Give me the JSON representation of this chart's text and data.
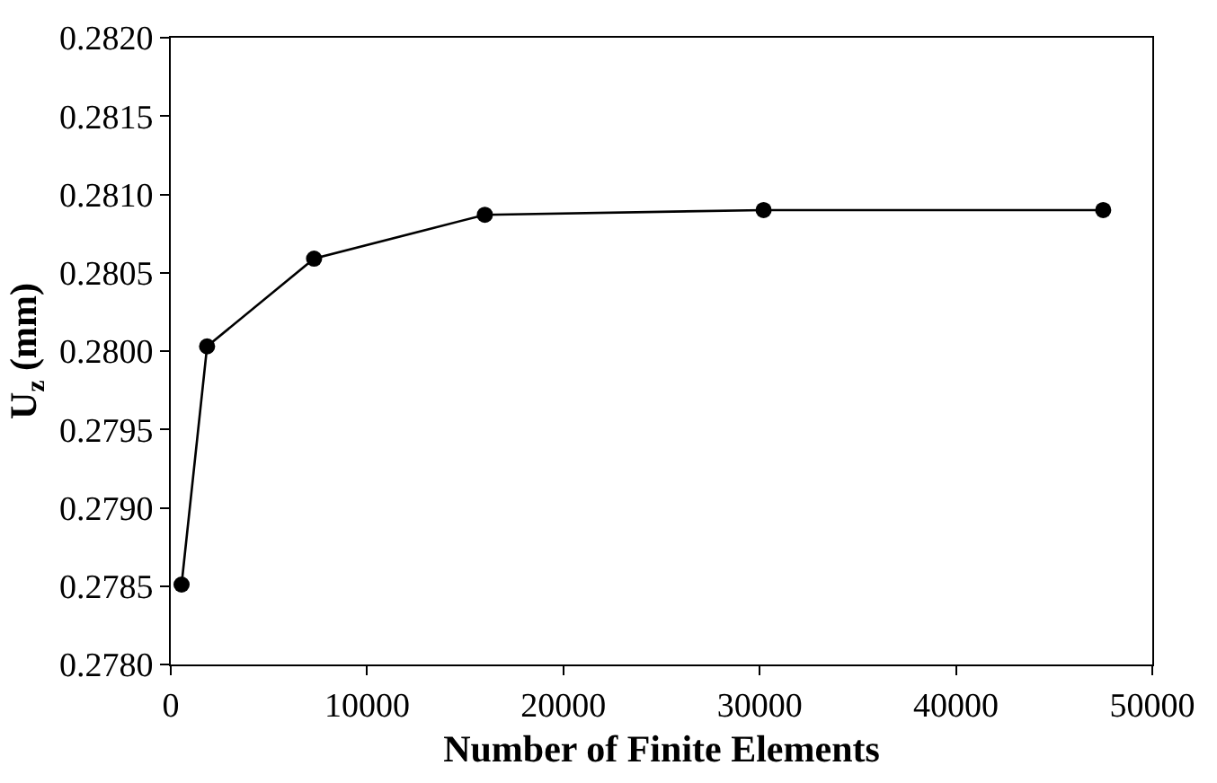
{
  "chart_data": {
    "type": "line",
    "xlabel": "Number of Finite Elements",
    "ylabel": "U$_{z}$ (mm)",
    "x": [
      550,
      1850,
      7300,
      16000,
      30200,
      47500
    ],
    "series": [
      {
        "color": "#000000",
        "values": [
          0.27851,
          0.28003,
          0.28059,
          0.28087,
          0.2809,
          0.2809
        ]
      }
    ],
    "xlim": [
      0,
      50000
    ],
    "xticks": [
      0,
      10000,
      20000,
      30000,
      40000,
      50000
    ],
    "ylim": [
      0.278,
      0.282
    ],
    "yticks": [
      {
        "value": 0.278,
        "label": "0.2780"
      },
      {
        "value": 0.2785,
        "label": "0.2785"
      },
      {
        "value": 0.279,
        "label": "0.2790"
      },
      {
        "value": 0.2795,
        "label": "0.2795"
      },
      {
        "value": 0.28,
        "label": "0.2800"
      },
      {
        "value": 0.2805,
        "label": "0.2805"
      },
      {
        "value": 0.281,
        "label": "0.2810"
      },
      {
        "value": 0.2815,
        "label": "0.2815"
      },
      {
        "value": 0.282,
        "label": "0.2820"
      }
    ],
    "legend": false,
    "marker": "circle",
    "line_style": "solid"
  }
}
